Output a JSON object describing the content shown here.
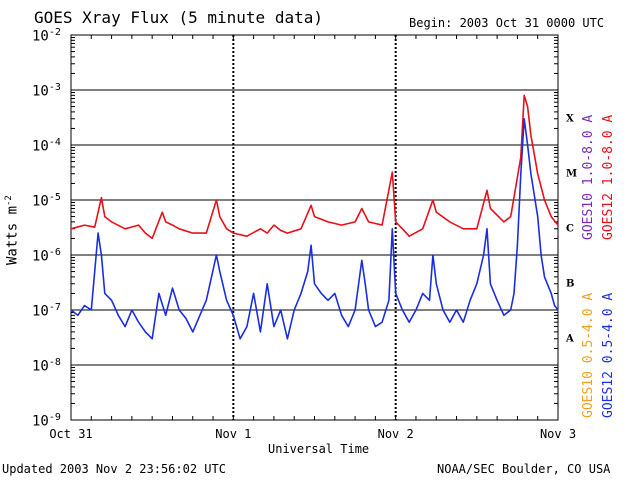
{
  "colors": {
    "goes12_long": "#e8101a",
    "goes10_long": "#7a2ab8",
    "goes12_short": "#1a2ee0",
    "goes10_short": "#f0a020",
    "grid": "#000000"
  },
  "header": {
    "title": "GOES Xray Flux (5 minute data)",
    "begin": "Begin:  2003 Oct 31 0000 UTC"
  },
  "footer": {
    "updated": "Updated 2003 Nov  2 23:56:02 UTC",
    "source": "NOAA/SEC Boulder, CO USA"
  },
  "legend": {
    "goes10_long": "GOES10 1.0-8.0 A",
    "goes12_long": "GOES12 1.0-8.0 A",
    "goes10_short": "GOES10 0.5-4.0 A",
    "goes12_short": "GOES12 0.5-4.0 A"
  },
  "chart_data": {
    "type": "line",
    "title": "GOES Xray Flux (5 minute data)",
    "xlabel": "Universal Time",
    "ylabel": "Watts m^-2",
    "yscale": "log",
    "ylim": [
      1e-09,
      0.01
    ],
    "xlim": [
      0,
      72
    ],
    "x_unit": "hours since 2003 Oct 31 0000 UTC",
    "x_ticks": [
      {
        "x": 0,
        "label": "Oct 31"
      },
      {
        "x": 24,
        "label": "Nov 1"
      },
      {
        "x": 48,
        "label": "Nov 2"
      },
      {
        "x": 72,
        "label": "Nov 3"
      }
    ],
    "y_ticks": [
      {
        "exp": -2,
        "base": "10",
        "sup": "-2"
      },
      {
        "exp": -3,
        "base": "10",
        "sup": "-3"
      },
      {
        "exp": -4,
        "base": "10",
        "sup": "-4"
      },
      {
        "exp": -5,
        "base": "10",
        "sup": "-5"
      },
      {
        "exp": -6,
        "base": "10",
        "sup": "-6"
      },
      {
        "exp": -7,
        "base": "10",
        "sup": "-7"
      },
      {
        "exp": -8,
        "base": "10",
        "sup": "-8"
      },
      {
        "exp": -9,
        "base": "10",
        "sup": "-9"
      }
    ],
    "flare_classes": [
      {
        "label": "X",
        "exp": -3.5
      },
      {
        "label": "M",
        "exp": -4.5
      },
      {
        "label": "C",
        "exp": -5.5
      },
      {
        "label": "B",
        "exp": -6.5
      },
      {
        "label": "A",
        "exp": -7.5
      }
    ],
    "series": [
      {
        "name": "GOES12 1.0-8.0 A",
        "color_key": "goes12_long",
        "points": [
          [
            0,
            3e-06
          ],
          [
            2,
            3.5e-06
          ],
          [
            3.5,
            3.2e-06
          ],
          [
            4.5,
            1.1e-05
          ],
          [
            5,
            5e-06
          ],
          [
            6,
            4e-06
          ],
          [
            8,
            3e-06
          ],
          [
            10,
            3.5e-06
          ],
          [
            11,
            2.5e-06
          ],
          [
            12,
            2e-06
          ],
          [
            13.5,
            6e-06
          ],
          [
            14,
            4e-06
          ],
          [
            15,
            3.5e-06
          ],
          [
            16,
            3e-06
          ],
          [
            18,
            2.5e-06
          ],
          [
            20,
            2.5e-06
          ],
          [
            21.5,
            1e-05
          ],
          [
            22,
            5e-06
          ],
          [
            23,
            3e-06
          ],
          [
            24,
            2.5e-06
          ],
          [
            26,
            2.2e-06
          ],
          [
            28,
            3e-06
          ],
          [
            29,
            2.5e-06
          ],
          [
            30,
            3.5e-06
          ],
          [
            31,
            2.8e-06
          ],
          [
            32,
            2.5e-06
          ],
          [
            34,
            3e-06
          ],
          [
            35.5,
            8e-06
          ],
          [
            36,
            5e-06
          ],
          [
            38,
            4e-06
          ],
          [
            40,
            3.5e-06
          ],
          [
            42,
            4e-06
          ],
          [
            43,
            7e-06
          ],
          [
            44,
            4e-06
          ],
          [
            46,
            3.5e-06
          ],
          [
            47.5,
            3.2e-05
          ],
          [
            48,
            4e-06
          ],
          [
            49,
            3e-06
          ],
          [
            50,
            2.2e-06
          ],
          [
            52,
            3e-06
          ],
          [
            53.5,
            1e-05
          ],
          [
            54,
            6e-06
          ],
          [
            56,
            4e-06
          ],
          [
            58,
            3e-06
          ],
          [
            60,
            3e-06
          ],
          [
            61.5,
            1.5e-05
          ],
          [
            62,
            7e-06
          ],
          [
            64,
            4e-06
          ],
          [
            65,
            5e-06
          ],
          [
            66.5,
            6e-05
          ],
          [
            67,
            0.0008
          ],
          [
            67.5,
            0.0005
          ],
          [
            68,
            0.00015
          ],
          [
            69,
            3e-05
          ],
          [
            70,
            1e-05
          ],
          [
            71,
            5e-06
          ],
          [
            72,
            3.5e-06
          ]
        ]
      },
      {
        "name": "GOES12 0.5-4.0 A",
        "color_key": "goes12_short",
        "points": [
          [
            0,
            1e-07
          ],
          [
            1,
            8e-08
          ],
          [
            2,
            1.2e-07
          ],
          [
            3,
            1e-07
          ],
          [
            4,
            2.5e-06
          ],
          [
            4.5,
            1e-06
          ],
          [
            5,
            2e-07
          ],
          [
            6,
            1.5e-07
          ],
          [
            7,
            8e-08
          ],
          [
            8,
            5e-08
          ],
          [
            9,
            1e-07
          ],
          [
            10,
            6e-08
          ],
          [
            11,
            4e-08
          ],
          [
            12,
            3e-08
          ],
          [
            13,
            2e-07
          ],
          [
            14,
            8e-08
          ],
          [
            15,
            2.5e-07
          ],
          [
            16,
            1e-07
          ],
          [
            17,
            7e-08
          ],
          [
            18,
            4e-08
          ],
          [
            20,
            1.5e-07
          ],
          [
            21.5,
            1e-06
          ],
          [
            22,
            5e-07
          ],
          [
            23,
            1.5e-07
          ],
          [
            24,
            8e-08
          ],
          [
            25,
            3e-08
          ],
          [
            26,
            5e-08
          ],
          [
            27,
            2e-07
          ],
          [
            28,
            4e-08
          ],
          [
            29,
            3e-07
          ],
          [
            30,
            5e-08
          ],
          [
            31,
            1e-07
          ],
          [
            32,
            3e-08
          ],
          [
            33,
            1e-07
          ],
          [
            34,
            2e-07
          ],
          [
            35,
            5e-07
          ],
          [
            35.5,
            1.5e-06
          ],
          [
            36,
            3e-07
          ],
          [
            37,
            2e-07
          ],
          [
            38,
            1.5e-07
          ],
          [
            39,
            2e-07
          ],
          [
            40,
            8e-08
          ],
          [
            41,
            5e-08
          ],
          [
            42,
            1e-07
          ],
          [
            43,
            8e-07
          ],
          [
            43.5,
            3e-07
          ],
          [
            44,
            1e-07
          ],
          [
            45,
            5e-08
          ],
          [
            46,
            6e-08
          ],
          [
            47,
            1.5e-07
          ],
          [
            47.5,
            3e-06
          ],
          [
            48,
            2e-07
          ],
          [
            49,
            1e-07
          ],
          [
            50,
            6e-08
          ],
          [
            51,
            1e-07
          ],
          [
            52,
            2e-07
          ],
          [
            53,
            1.5e-07
          ],
          [
            53.5,
            1e-06
          ],
          [
            54,
            3e-07
          ],
          [
            55,
            1e-07
          ],
          [
            56,
            6e-08
          ],
          [
            57,
            1e-07
          ],
          [
            58,
            6e-08
          ],
          [
            59,
            1.5e-07
          ],
          [
            60,
            3e-07
          ],
          [
            61,
            1e-06
          ],
          [
            61.5,
            3e-06
          ],
          [
            62,
            3e-07
          ],
          [
            63,
            1.5e-07
          ],
          [
            64,
            8e-08
          ],
          [
            65,
            1e-07
          ],
          [
            65.5,
            2e-07
          ],
          [
            66,
            1.5e-06
          ],
          [
            66.5,
            3e-05
          ],
          [
            67,
            0.0003
          ],
          [
            67.5,
            0.0001
          ],
          [
            68,
            3e-05
          ],
          [
            69,
            5e-06
          ],
          [
            69.5,
            1e-06
          ],
          [
            70,
            4e-07
          ],
          [
            71,
            2e-07
          ],
          [
            71.5,
            1.2e-07
          ],
          [
            72,
            1e-07
          ]
        ]
      }
    ]
  }
}
